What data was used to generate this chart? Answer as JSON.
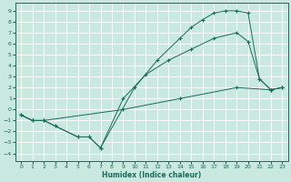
{
  "xlabel": "Humidex (Indice chaleur)",
  "bg_color": "#c8e8e0",
  "grid_color": "#ffffff",
  "line_color": "#1a6b5a",
  "xlim": [
    -0.5,
    23.5
  ],
  "ylim": [
    -4.7,
    9.7
  ],
  "xticks": [
    0,
    1,
    2,
    3,
    4,
    5,
    6,
    7,
    8,
    9,
    10,
    11,
    12,
    13,
    14,
    15,
    16,
    17,
    18,
    19,
    20,
    21,
    22,
    23
  ],
  "yticks": [
    -4,
    -3,
    -2,
    -1,
    0,
    1,
    2,
    3,
    4,
    5,
    6,
    7,
    8,
    9
  ],
  "line1": {
    "x": [
      0,
      1,
      2,
      9,
      14,
      19,
      22,
      23
    ],
    "y": [
      -0.5,
      -1.0,
      -1.0,
      0.0,
      1.0,
      2.0,
      1.8,
      2.0
    ]
  },
  "line2": {
    "x": [
      0,
      1,
      2,
      3,
      5,
      6,
      7,
      9,
      11,
      13,
      15,
      17,
      19,
      20,
      21,
      22,
      23
    ],
    "y": [
      -0.5,
      -1.0,
      -1.0,
      -1.5,
      -2.5,
      -2.5,
      -3.5,
      1.0,
      3.2,
      4.5,
      5.5,
      6.5,
      7.0,
      6.2,
      2.8,
      1.8,
      2.0
    ]
  },
  "line3": {
    "x": [
      0,
      1,
      2,
      3,
      5,
      6,
      7,
      10,
      12,
      14,
      15,
      16,
      17,
      18,
      19,
      20,
      21,
      22,
      23
    ],
    "y": [
      -0.5,
      -1.0,
      -1.0,
      -1.5,
      -2.5,
      -2.5,
      -3.5,
      2.0,
      4.5,
      6.5,
      7.5,
      8.2,
      8.8,
      9.0,
      9.0,
      8.8,
      2.8,
      1.8,
      2.0
    ]
  }
}
